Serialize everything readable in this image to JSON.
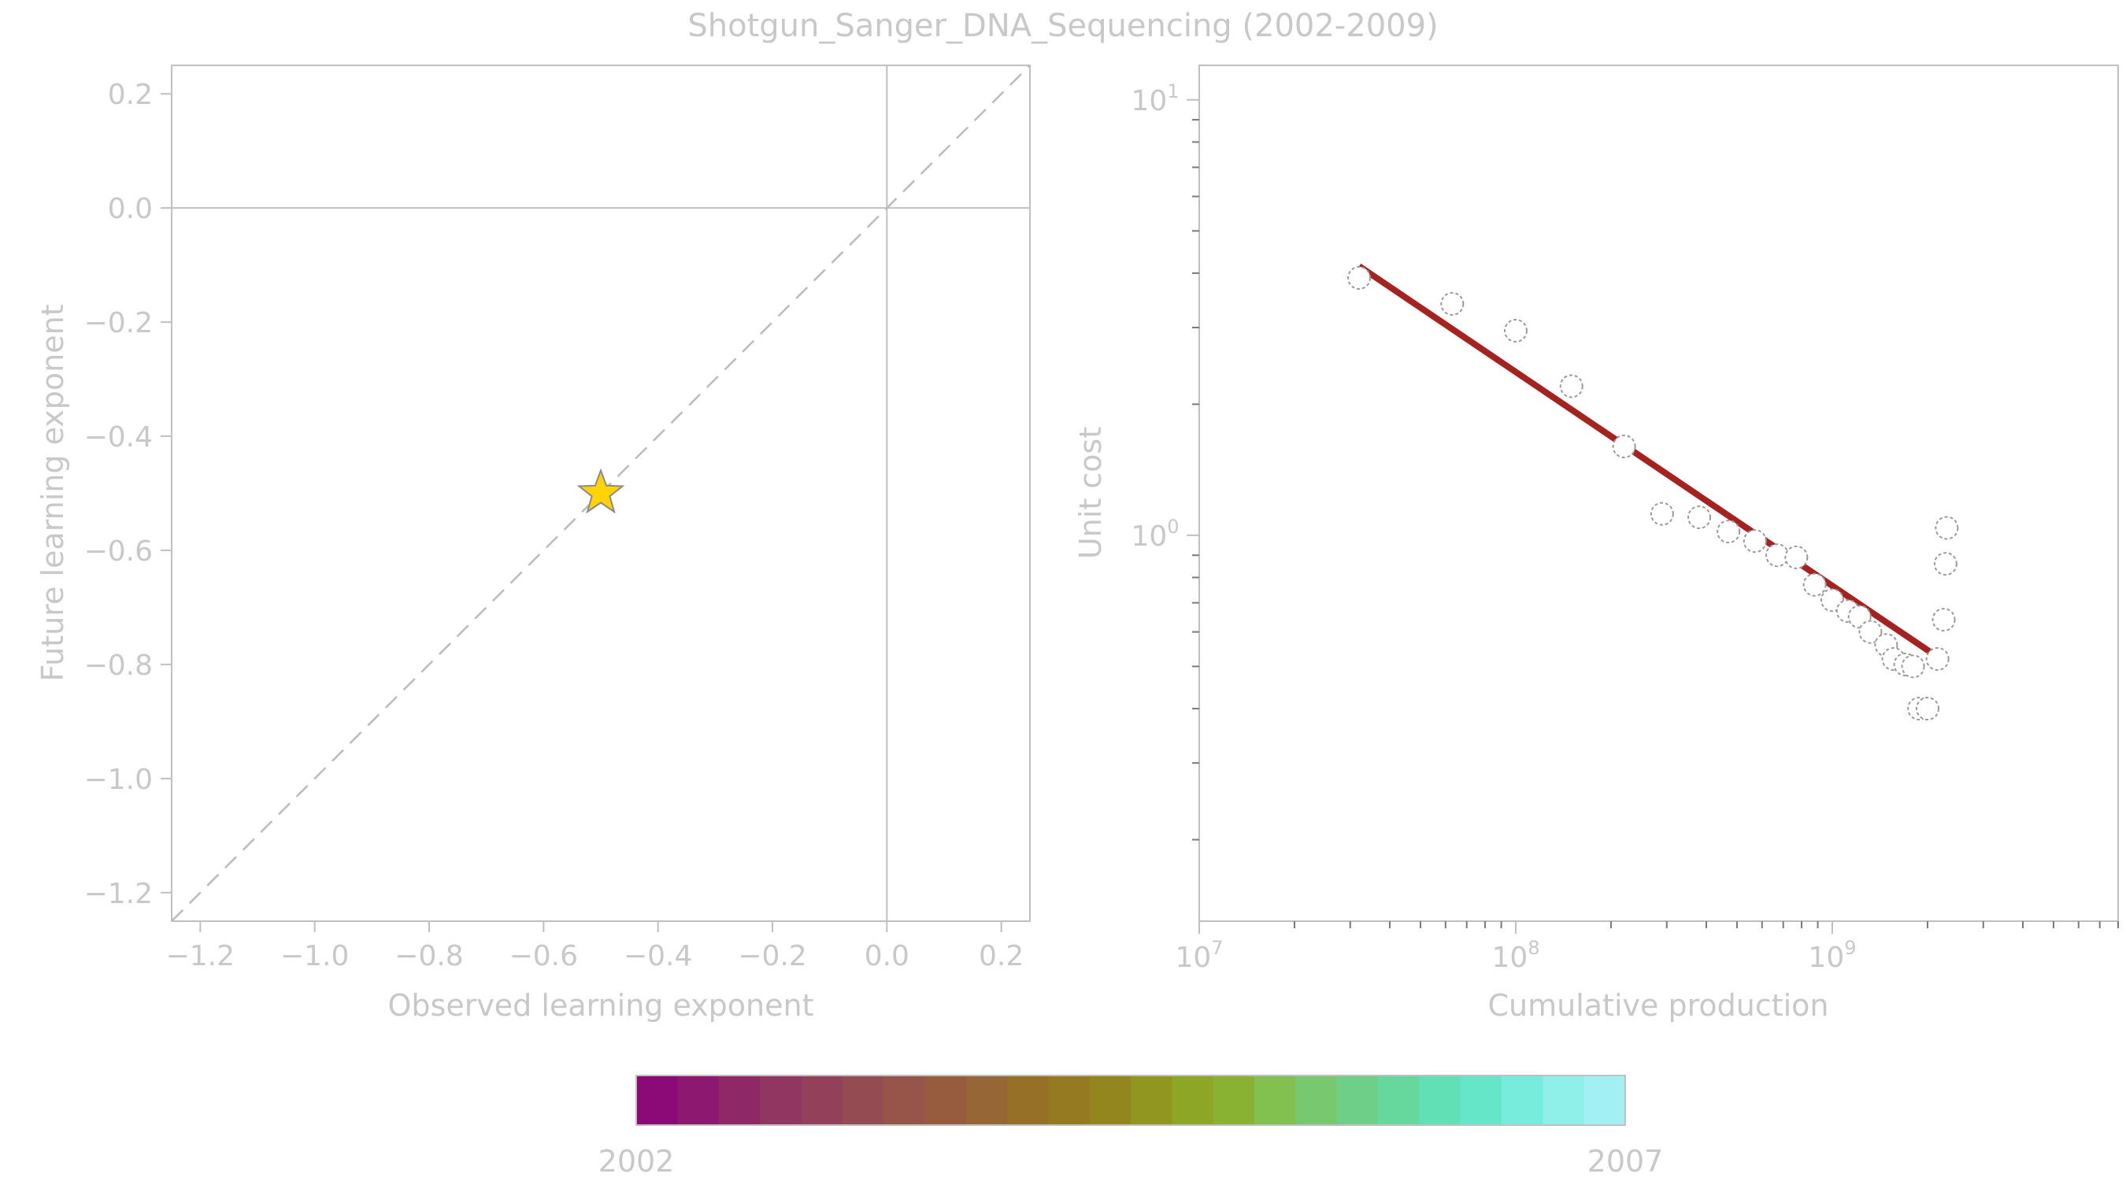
{
  "figure_title": "Shotgun_Sanger_DNA_Sequencing (2002-2009)",
  "colors": {
    "background": "#ffffff",
    "text": "#c8c8c8",
    "axis": "#c0c0c0",
    "fit_line": "#a5221e",
    "star_fill": "#ffd400",
    "star_stroke": "#8a8a8a",
    "marker_stroke": "#9a9a9a"
  },
  "chart_data": [
    {
      "type": "scatter",
      "panel": "left",
      "xlabel": "Observed learning exponent",
      "ylabel": "Future learning exponent",
      "xlim": [
        -1.25,
        0.25
      ],
      "ylim": [
        -1.25,
        0.25
      ],
      "xticks": [
        -1.2,
        -1.0,
        -0.8,
        -0.6,
        -0.4,
        -0.2,
        0.0,
        0.2
      ],
      "yticks": [
        -1.2,
        -1.0,
        -0.8,
        -0.6,
        -0.4,
        -0.2,
        0.0,
        0.2
      ],
      "xtick_labels": [
        "−1.2",
        "−1.0",
        "−0.8",
        "−0.6",
        "−0.4",
        "−0.2",
        "0.0",
        "0.2"
      ],
      "ytick_labels": [
        "−1.2",
        "−1.0",
        "−0.8",
        "−0.6",
        "−0.4",
        "−0.2",
        "0.0",
        "0.2"
      ],
      "reference_lines": {
        "horizontal_at": 0.0,
        "vertical_at": 0.0,
        "diagonal": "y = x (dashed)"
      },
      "points": [
        {
          "x": -0.5,
          "y": -0.5,
          "marker": "star"
        }
      ],
      "grid": false
    },
    {
      "type": "scatter",
      "panel": "right",
      "xlabel": "Cumulative production",
      "ylabel": "Unit cost",
      "xscale": "log",
      "yscale": "log",
      "xlim": [
        10000000,
        8000000000
      ],
      "ylim": [
        0.13,
        12
      ],
      "xtick_labels": [
        {
          "base": "10",
          "exp": "7",
          "value": 10000000
        },
        {
          "base": "10",
          "exp": "8",
          "value": 100000000
        },
        {
          "base": "10",
          "exp": "9",
          "value": 1000000000
        }
      ],
      "ytick_labels": [
        {
          "base": "10",
          "exp": "0",
          "value": 1
        },
        {
          "base": "10",
          "exp": "1",
          "value": 10
        }
      ],
      "points": [
        {
          "x": 32000000,
          "y": 3.9
        },
        {
          "x": 63000000,
          "y": 3.4
        },
        {
          "x": 100000000,
          "y": 2.95
        },
        {
          "x": 150000000,
          "y": 2.2
        },
        {
          "x": 220000000,
          "y": 1.6
        },
        {
          "x": 290000000,
          "y": 1.12
        },
        {
          "x": 380000000,
          "y": 1.1
        },
        {
          "x": 470000000,
          "y": 1.02
        },
        {
          "x": 570000000,
          "y": 0.97
        },
        {
          "x": 670000000,
          "y": 0.9
        },
        {
          "x": 770000000,
          "y": 0.89
        },
        {
          "x": 880000000,
          "y": 0.77
        },
        {
          "x": 1000000000,
          "y": 0.71
        },
        {
          "x": 1120000000,
          "y": 0.67
        },
        {
          "x": 1220000000,
          "y": 0.65
        },
        {
          "x": 1320000000,
          "y": 0.6
        },
        {
          "x": 1480000000,
          "y": 0.56
        },
        {
          "x": 1560000000,
          "y": 0.52
        },
        {
          "x": 1700000000,
          "y": 0.505
        },
        {
          "x": 1800000000,
          "y": 0.5
        },
        {
          "x": 1880000000,
          "y": 0.4
        },
        {
          "x": 2000000000,
          "y": 0.4
        },
        {
          "x": 2150000000,
          "y": 0.52
        },
        {
          "x": 2250000000,
          "y": 0.64
        },
        {
          "x": 2280000000,
          "y": 0.86
        },
        {
          "x": 2300000000,
          "y": 1.04
        }
      ],
      "fit_line": {
        "x": [
          32000000,
          2200000000
        ],
        "y": [
          4.15,
          0.52
        ]
      },
      "grid": false
    }
  ],
  "colorbar": {
    "label_start": "2002",
    "label_end": "2007",
    "colors": [
      "#8b0a78",
      "#8d1870",
      "#8f2866",
      "#913660",
      "#93405a",
      "#954b52",
      "#97554a",
      "#975c3e",
      "#976636",
      "#977028",
      "#957a22",
      "#93861e",
      "#909620",
      "#8ea626",
      "#8ab232",
      "#82c050",
      "#78c870",
      "#6ed088",
      "#66d89e",
      "#60e0b4",
      "#66e6c8",
      "#78ecdc",
      "#8ef0e8",
      "#a2f0f4"
    ]
  }
}
